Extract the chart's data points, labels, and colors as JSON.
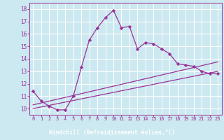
{
  "xlabel": "Windchill (Refroidissement éolien,°C)",
  "bg_color": "#cce8f0",
  "grid_color": "#ffffff",
  "line_color": "#993399",
  "xlabel_bg": "#993399",
  "xlabel_fg": "#ffffff",
  "x_values": [
    0,
    1,
    2,
    3,
    4,
    5,
    6,
    7,
    8,
    9,
    10,
    11,
    12,
    13,
    14,
    15,
    16,
    17,
    18,
    19,
    20,
    21,
    22,
    23
  ],
  "y_main": [
    11.4,
    10.6,
    10.2,
    9.9,
    9.9,
    11.0,
    13.3,
    15.5,
    16.5,
    17.3,
    17.9,
    16.5,
    16.6,
    14.8,
    15.3,
    15.2,
    14.8,
    14.4,
    13.6,
    13.5,
    13.4,
    13.0,
    12.8,
    12.8
  ],
  "y_linear1": [
    10.0,
    10.13,
    10.26,
    10.39,
    10.52,
    10.65,
    10.78,
    10.91,
    11.04,
    11.17,
    11.3,
    11.43,
    11.56,
    11.69,
    11.82,
    11.95,
    12.08,
    12.21,
    12.34,
    12.47,
    12.6,
    12.73,
    12.86,
    12.99
  ],
  "y_linear2": [
    10.3,
    10.45,
    10.6,
    10.75,
    10.9,
    11.05,
    11.2,
    11.35,
    11.5,
    11.65,
    11.8,
    11.95,
    12.1,
    12.25,
    12.4,
    12.55,
    12.7,
    12.85,
    13.0,
    13.15,
    13.3,
    13.45,
    13.6,
    13.75
  ],
  "ylim": [
    9.5,
    18.5
  ],
  "xlim": [
    -0.5,
    23.5
  ],
  "yticks": [
    10,
    11,
    12,
    13,
    14,
    15,
    16,
    17,
    18
  ],
  "xticks": [
    0,
    1,
    2,
    3,
    4,
    5,
    6,
    7,
    8,
    9,
    10,
    11,
    12,
    13,
    14,
    15,
    16,
    17,
    18,
    19,
    20,
    21,
    22,
    23
  ]
}
